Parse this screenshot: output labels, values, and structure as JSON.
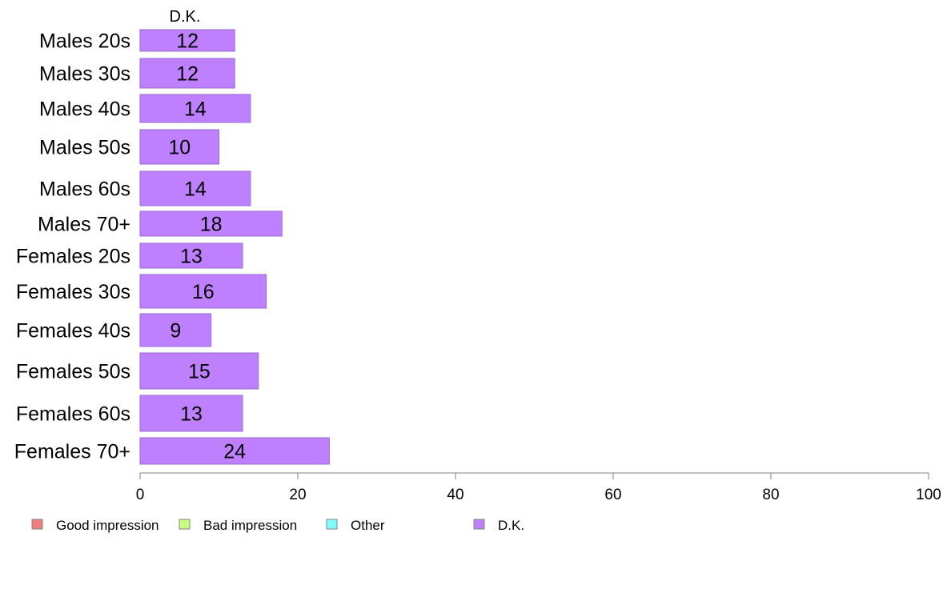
{
  "chart_data": {
    "type": "bar",
    "orientation": "horizontal",
    "stacked": true,
    "column_title": "D.K.",
    "categories": [
      "Males 20s",
      "Males 30s",
      "Males 40s",
      "Males 50s",
      "Males 60s",
      "Males 70+",
      "Females 20s",
      "Females 30s",
      "Females 40s",
      "Females 50s",
      "Females 60s",
      "Females 70+"
    ],
    "series": [
      {
        "name": "Good impression",
        "color": "#f08080",
        "values": [
          0,
          0,
          0,
          0,
          0,
          0,
          0,
          0,
          0,
          0,
          0,
          0
        ]
      },
      {
        "name": "Bad impression",
        "color": "#c8ff80",
        "values": [
          0,
          0,
          0,
          0,
          0,
          0,
          0,
          0,
          0,
          0,
          0,
          0
        ]
      },
      {
        "name": "Other",
        "color": "#80ffff",
        "values": [
          0,
          0,
          0,
          0,
          0,
          0,
          0,
          0,
          0,
          0,
          0,
          0
        ]
      },
      {
        "name": "D.K.",
        "color": "#bf80ff",
        "values": [
          12,
          12,
          14,
          10,
          14,
          18,
          13,
          16,
          9,
          15,
          13,
          24
        ]
      }
    ],
    "data_labels": [
      "12",
      "12",
      "14",
      "10",
      "14",
      "18",
      "13",
      "16",
      "9",
      "15",
      "13",
      "24"
    ],
    "xlim": [
      0,
      100
    ],
    "xticks": [
      "0",
      "20",
      "40",
      "60",
      "80",
      "100"
    ],
    "xlabel": "",
    "ylabel": "",
    "grid": false,
    "legend_position": "bottom",
    "legend": [
      "Good impression",
      "Bad impression",
      "Other",
      "D.K."
    ]
  }
}
